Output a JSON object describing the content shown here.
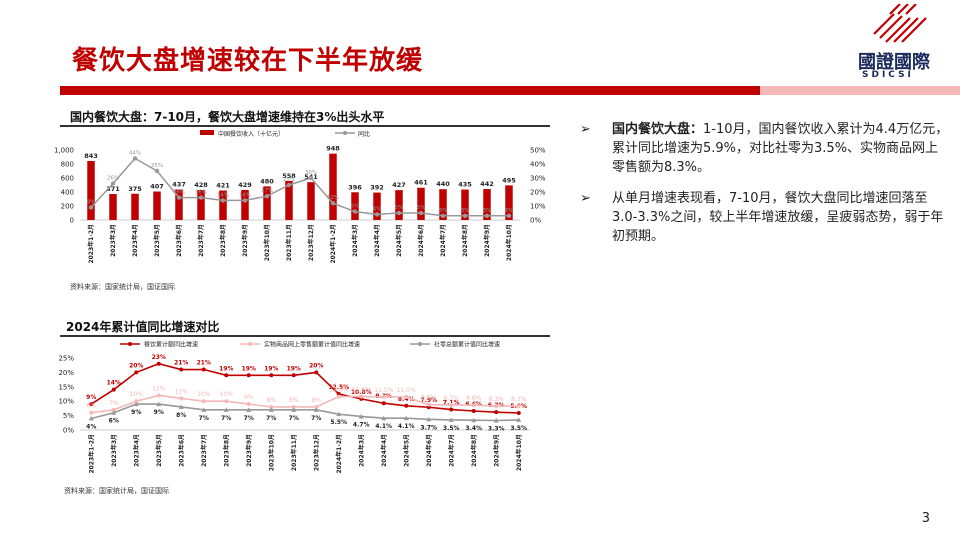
{
  "page": {
    "title": "餐饮大盘增速较在下半年放缓",
    "logo_cn": "國證國際",
    "logo_en": "SDICSI",
    "page_number": "3"
  },
  "colors": {
    "brand_red": "#c00000",
    "pink": "#f4b8b8",
    "gray": "#999999",
    "navy": "#1a2a5a"
  },
  "chart1": {
    "title": "国内餐饮大盘：7-10月，餐饮大盘增速维持在3%出头水平",
    "source": "资料来源：国家统计局，国证国际"
  },
  "chart2": {
    "title": "2024年累计值同比增速对比",
    "source": "资料来源：国家统计局，国证国际"
  },
  "bullets": [
    {
      "bold": "国内餐饮大盘：",
      "text": "1-10月，国内餐饮收入累计为4.4万亿元，累计同比增速为5.9%，对比社零为3.5%、实物商品网上零售额为8.3%。"
    },
    {
      "bold": "",
      "text": "从单月增速表现看，7-10月，餐饮大盘同比增速回落至3.0-3.3%之间，较上半年增速放缓，呈疲弱态势，弱于年初预期。"
    }
  ],
  "chart_data": [
    {
      "type": "bar",
      "categories": [
        "2023年1-2月",
        "2023年3月",
        "2023年4月",
        "2023年5月",
        "2023年6月",
        "2023年7月",
        "2023年8月",
        "2023年9月",
        "2023年10月",
        "2023年11月",
        "2023年12月",
        "2024年1-2月",
        "2024年3月",
        "2024年4月",
        "2024年5月",
        "2024年6月",
        "2024年7月",
        "2024年8月",
        "2024年9月",
        "2024年10月"
      ],
      "series": [
        {
          "name": "中国餐饮收入（十亿元）",
          "kind": "bar",
          "axis": "left",
          "color": "#c00000",
          "values": [
            843,
            371,
            375,
            407,
            437,
            428,
            421,
            429,
            480,
            558,
            541,
            948,
            396,
            392,
            427,
            461,
            440,
            435,
            442,
            495
          ],
          "labels": [
            "843",
            "371",
            "375",
            "407",
            "437",
            "428",
            "421",
            "429",
            "480",
            "558",
            "541",
            "948",
            "396",
            "392",
            "427",
            "461",
            "440",
            "435",
            "442",
            "495"
          ]
        },
        {
          "name": "同比",
          "kind": "line",
          "axis": "right",
          "color": "#999999",
          "values": [
            9,
            26,
            44,
            35,
            16,
            16,
            14,
            14,
            17,
            25,
            30,
            12,
            6,
            4,
            5,
            5,
            3,
            3,
            3,
            3
          ],
          "labels": [
            "9%",
            "26%",
            "44%",
            "35%",
            "16%",
            "16%",
            "14%",
            "14%",
            "17%",
            "25%",
            "30%",
            "12%",
            "6%",
            "4%",
            "5%",
            "5%",
            "3%",
            "3%",
            "3%",
            "3%"
          ]
        }
      ],
      "y_left": {
        "ylim": [
          0,
          1000
        ],
        "ticks": [
          "0",
          "200",
          "400",
          "600",
          "800",
          "1,000"
        ]
      },
      "y_right": {
        "ylim": [
          0,
          50
        ],
        "ticks": [
          "0%",
          "10%",
          "20%",
          "30%",
          "40%",
          "50%"
        ]
      },
      "legend": "top-center"
    },
    {
      "type": "line",
      "categories": [
        "2023年1-2月",
        "2023年3月",
        "2023年4月",
        "2023年5月",
        "2023年6月",
        "2023年7月",
        "2023年8月",
        "2023年9月",
        "2023年10月",
        "2023年11月",
        "2023年12月",
        "2024年1-2月",
        "2024年3月",
        "2024年4月",
        "2024年5月",
        "2024年6月",
        "2024年7月",
        "2024年8月",
        "2024年9月",
        "2024年10月"
      ],
      "series": [
        {
          "name": "餐饮累计额同比增速",
          "color": "#c00000",
          "values": [
            9,
            14,
            20,
            23,
            21,
            21,
            19,
            19,
            19,
            19,
            20,
            12.5,
            10.8,
            9.3,
            8.4,
            7.9,
            7.1,
            6.6,
            6.2,
            5.9
          ],
          "labels": [
            "9%",
            "14%",
            "20%",
            "23%",
            "21%",
            "21%",
            "19%",
            "19%",
            "19%",
            "19%",
            "20%",
            "12.5%",
            "10.8%",
            "9.3%",
            "8.4%",
            "7.9%",
            "7.1%",
            "6.6%",
            "6.2%",
            "5.9%"
          ]
        },
        {
          "name": "实物商品网上零售额累计值同比增速",
          "color": "#f4b8b8",
          "values": [
            6,
            7,
            10,
            12,
            11,
            10,
            10,
            9,
            8,
            8,
            8,
            11.6,
            11.6,
            11.5,
            11.5,
            8.8,
            8.7,
            8.6,
            8.3,
            8.3
          ],
          "labels": [
            "6%",
            "7%",
            "10%",
            "12%",
            "11%",
            "10%",
            "10%",
            "9%",
            "8%",
            "8%",
            "8%",
            "11.6%",
            "11.6%",
            "11.5%",
            "11.5%",
            "8.8%",
            "8.7%",
            "8.6%",
            "8.3%",
            "8.3%"
          ]
        },
        {
          "name": "社零总额累计值同比增速",
          "color": "#999999",
          "values": [
            4,
            6,
            9,
            9,
            8,
            7,
            7,
            7,
            7,
            7,
            7,
            5.5,
            4.7,
            4.1,
            4.1,
            3.7,
            3.5,
            3.4,
            3.3,
            3.5
          ],
          "labels": [
            "4%",
            "6%",
            "9%",
            "9%",
            "8%",
            "7%",
            "7%",
            "7%",
            "7%",
            "7%",
            "7%",
            "5.5%",
            "4.7%",
            "4.1%",
            "4.1%",
            "3.7%",
            "3.5%",
            "3.4%",
            "3.3%",
            "3.5%"
          ]
        }
      ],
      "ylim": [
        0,
        25
      ],
      "yticks": [
        "0%",
        "5%",
        "10%",
        "15%",
        "20%",
        "25%"
      ],
      "legend": "top-center"
    }
  ]
}
